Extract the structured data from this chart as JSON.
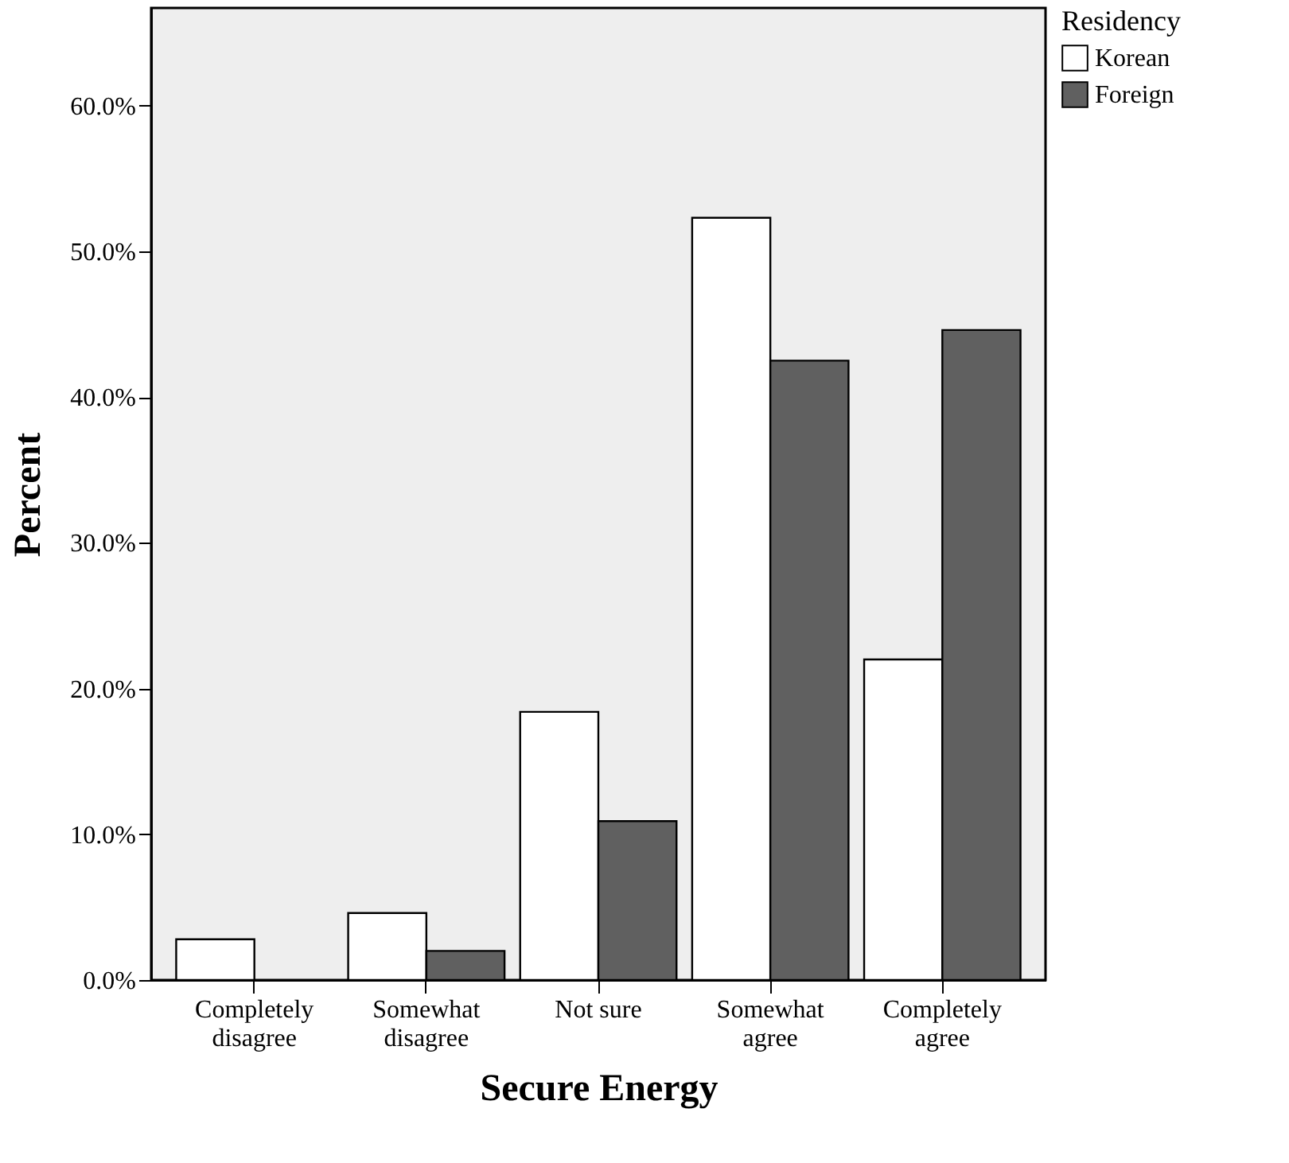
{
  "chart_data": {
    "type": "bar",
    "xlabel": "Secure Energy",
    "ylabel": "Percent",
    "legend_title": "Residency",
    "legend": "top right",
    "grid": false,
    "categories": [
      "Completely disagree",
      "Somewhat disagree",
      "Not sure",
      "Somewhat agree",
      "Completely agree"
    ],
    "series": [
      {
        "name": "Korean",
        "color": "#ffffff",
        "values": [
          2.8,
          4.6,
          18.4,
          52.3,
          22.0
        ]
      },
      {
        "name": "Foreign",
        "color": "#606060",
        "values": [
          0.0,
          2.0,
          10.9,
          42.5,
          44.6
        ]
      }
    ],
    "ylim": [
      0,
      66.7
    ],
    "yticks": [
      {
        "value": 0,
        "label": "0.0%"
      },
      {
        "value": 10,
        "label": "10.0%"
      },
      {
        "value": 20,
        "label": "20.0%"
      },
      {
        "value": 30,
        "label": "30.0%"
      },
      {
        "value": 40,
        "label": "40.0%"
      },
      {
        "value": 50,
        "label": "50.0%"
      },
      {
        "value": 60,
        "label": "60.0%"
      }
    ]
  }
}
